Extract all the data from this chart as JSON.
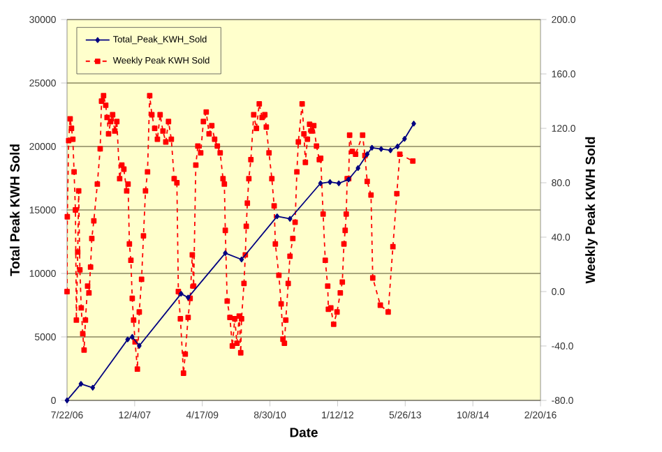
{
  "chart_data": {
    "type": "line",
    "xlabel": "Date",
    "ylabel": "Total Peak KWH Sold",
    "y2label": "Weekly Peak KWH Sold",
    "xlim": [
      "2006-07-22",
      "2016-02-20"
    ],
    "xticks": [
      {
        "value": "2006-07-22",
        "label": "7/22/06"
      },
      {
        "value": "2007-12-04",
        "label": "12/4/07"
      },
      {
        "value": "2009-04-17",
        "label": "4/17/09"
      },
      {
        "value": "2010-08-30",
        "label": "8/30/10"
      },
      {
        "value": "2012-01-12",
        "label": "1/12/12"
      },
      {
        "value": "2013-05-26",
        "label": "5/26/13"
      },
      {
        "value": "2014-10-08",
        "label": "10/8/14"
      },
      {
        "value": "2016-02-20",
        "label": "2/20/16"
      }
    ],
    "ylim": [
      0,
      30000
    ],
    "yticks": [
      0,
      5000,
      10000,
      15000,
      20000,
      25000,
      30000
    ],
    "y2lim": [
      -80,
      200
    ],
    "y2ticks": [
      {
        "value": -80,
        "label": "-80.0"
      },
      {
        "value": -40,
        "label": "-40.0"
      },
      {
        "value": 0,
        "label": "0.0"
      },
      {
        "value": 40,
        "label": "40.0"
      },
      {
        "value": 80,
        "label": "80.0"
      },
      {
        "value": 120,
        "label": "120.0"
      },
      {
        "value": 160,
        "label": "160.0"
      },
      {
        "value": 200,
        "label": "200.0"
      }
    ],
    "grid": "y",
    "legend": "top left",
    "series": [
      {
        "name": "Total_Peak_KWH_Sold",
        "color": "#000080",
        "marker": "diamond",
        "line_style": "solid",
        "x": [
          "2006-07-22",
          "2006-11-02",
          "2007-01-28",
          "2007-10-13",
          "2007-11-16",
          "2008-01-07",
          "2008-11-11",
          "2009-01-02",
          "2009-10-04",
          "2010-02-01",
          "2010-10-22",
          "2011-01-25",
          "2011-09-08",
          "2011-11-17",
          "2012-01-21",
          "2012-04-02",
          "2012-06-11",
          "2012-08-18",
          "2012-09-22",
          "2012-11-29",
          "2013-02-06",
          "2013-03-30",
          "2013-05-21",
          "2013-07-28"
        ],
        "values": [
          0,
          1300,
          1000,
          4800,
          5000,
          4300,
          8400,
          8100,
          11600,
          11100,
          14500,
          14300,
          17100,
          17200,
          17100,
          17400,
          18300,
          19400,
          19900,
          19800,
          19700,
          20000,
          20600,
          21800
        ]
      },
      {
        "name": "Weekly Peak KWH Sold",
        "color": "#ff0000",
        "marker": "square",
        "line_style": "dashed",
        "axis": "y2",
        "x": [
          "2006-07-22",
          "2006-07-24",
          "2006-08-03",
          "2006-08-14",
          "2006-08-24",
          "2006-09-03",
          "2006-09-12",
          "2006-09-22",
          "2006-09-29",
          "2006-10-09",
          "2006-10-16",
          "2006-10-25",
          "2006-11-04",
          "2006-11-15",
          "2006-11-25",
          "2006-12-05",
          "2006-12-21",
          "2006-12-31",
          "2007-01-12",
          "2007-01-21",
          "2007-02-05",
          "2007-03-03",
          "2007-03-24",
          "2007-04-03",
          "2007-04-18",
          "2007-05-04",
          "2007-05-14",
          "2007-05-25",
          "2007-06-09",
          "2007-06-24",
          "2007-07-10",
          "2007-07-25",
          "2007-08-15",
          "2007-08-31",
          "2007-09-15",
          "2007-10-06",
          "2007-10-16",
          "2007-10-26",
          "2007-11-06",
          "2007-11-16",
          "2007-11-26",
          "2007-12-07",
          "2007-12-24",
          "2008-01-07",
          "2008-01-24",
          "2008-02-07",
          "2008-02-22",
          "2008-03-08",
          "2008-03-24",
          "2008-04-09",
          "2008-04-30",
          "2008-05-20",
          "2008-06-09",
          "2008-06-30",
          "2008-07-21",
          "2008-08-10",
          "2008-08-31",
          "2008-09-21",
          "2008-10-11",
          "2008-10-22",
          "2008-11-06",
          "2008-11-29",
          "2008-12-12",
          "2009-01-02",
          "2009-01-17",
          "2009-02-02",
          "2009-02-12",
          "2009-02-28",
          "2009-03-15",
          "2009-04-05",
          "2009-04-25",
          "2009-05-16",
          "2009-06-06",
          "2009-06-26",
          "2009-07-17",
          "2009-08-06",
          "2009-08-27",
          "2009-09-17",
          "2009-09-27",
          "2009-10-04",
          "2009-10-18",
          "2009-11-07",
          "2009-11-25",
          "2009-12-13",
          "2009-12-29",
          "2010-01-15",
          "2010-01-26",
          "2010-02-01",
          "2010-02-19",
          "2010-03-01",
          "2010-03-08",
          "2010-03-16",
          "2010-03-27",
          "2010-04-11",
          "2010-05-02",
          "2010-05-22",
          "2010-06-12",
          "2010-07-03",
          "2010-07-23",
          "2010-08-03",
          "2010-08-23",
          "2010-09-13",
          "2010-09-30",
          "2010-10-09",
          "2010-11-04",
          "2010-11-21",
          "2010-12-04",
          "2010-12-15",
          "2010-12-25",
          "2011-01-12",
          "2011-01-25",
          "2011-02-15",
          "2011-03-04",
          "2011-03-17",
          "2011-03-28",
          "2011-04-25",
          "2011-05-08",
          "2011-05-19",
          "2011-06-03",
          "2011-06-19",
          "2011-07-04",
          "2011-07-20",
          "2011-08-09",
          "2011-08-30",
          "2011-09-09",
          "2011-09-27",
          "2011-10-13",
          "2011-10-31",
          "2011-11-05",
          "2011-11-23",
          "2011-12-14",
          "2012-01-08",
          "2012-02-01",
          "2012-02-16",
          "2012-02-28",
          "2012-03-08",
          "2012-03-16",
          "2012-03-23",
          "2012-04-03",
          "2012-04-10",
          "2012-04-30",
          "2012-05-24",
          "2012-07-15",
          "2012-08-01",
          "2012-08-18",
          "2012-09-15",
          "2012-09-28",
          "2012-11-23",
          "2013-01-20",
          "2013-02-24",
          "2013-03-25",
          "2013-04-16",
          "2013-07-21"
        ],
        "values": [
          0,
          55,
          111,
          127,
          120,
          112,
          88,
          60,
          -21,
          29,
          74,
          16,
          -12,
          -31,
          -43,
          -21,
          4,
          -1,
          18,
          39,
          52,
          79,
          105,
          140,
          144,
          137,
          128,
          116,
          125,
          130,
          118,
          125,
          83,
          93,
          90,
          74,
          79,
          35,
          23,
          -5,
          -21,
          -37,
          -57,
          -15,
          9,
          41,
          74,
          88,
          144,
          130,
          120,
          112,
          130,
          118,
          110,
          125,
          112,
          83,
          80,
          0,
          -20,
          -60,
          -46,
          -19,
          -5,
          27,
          4,
          93,
          107,
          102,
          125,
          132,
          116,
          122,
          112,
          107,
          102,
          83,
          79,
          45,
          -7,
          -19,
          -40,
          -20,
          -38,
          -18,
          -45,
          -20,
          6,
          27,
          48,
          65,
          83,
          97,
          130,
          120,
          138,
          128,
          130,
          121,
          102,
          83,
          63,
          35,
          12,
          -9,
          -35,
          -38,
          -21,
          6,
          26,
          39,
          51,
          88,
          110,
          138,
          116,
          95,
          112,
          123,
          118,
          122,
          107,
          97,
          98,
          57,
          23,
          4,
          -13,
          -12,
          -24,
          -15,
          -1,
          7,
          35,
          45,
          57,
          83,
          83,
          115,
          103,
          101,
          115,
          100,
          81,
          71,
          10,
          -10,
          -15,
          33,
          72,
          101,
          96
        ]
      }
    ]
  }
}
